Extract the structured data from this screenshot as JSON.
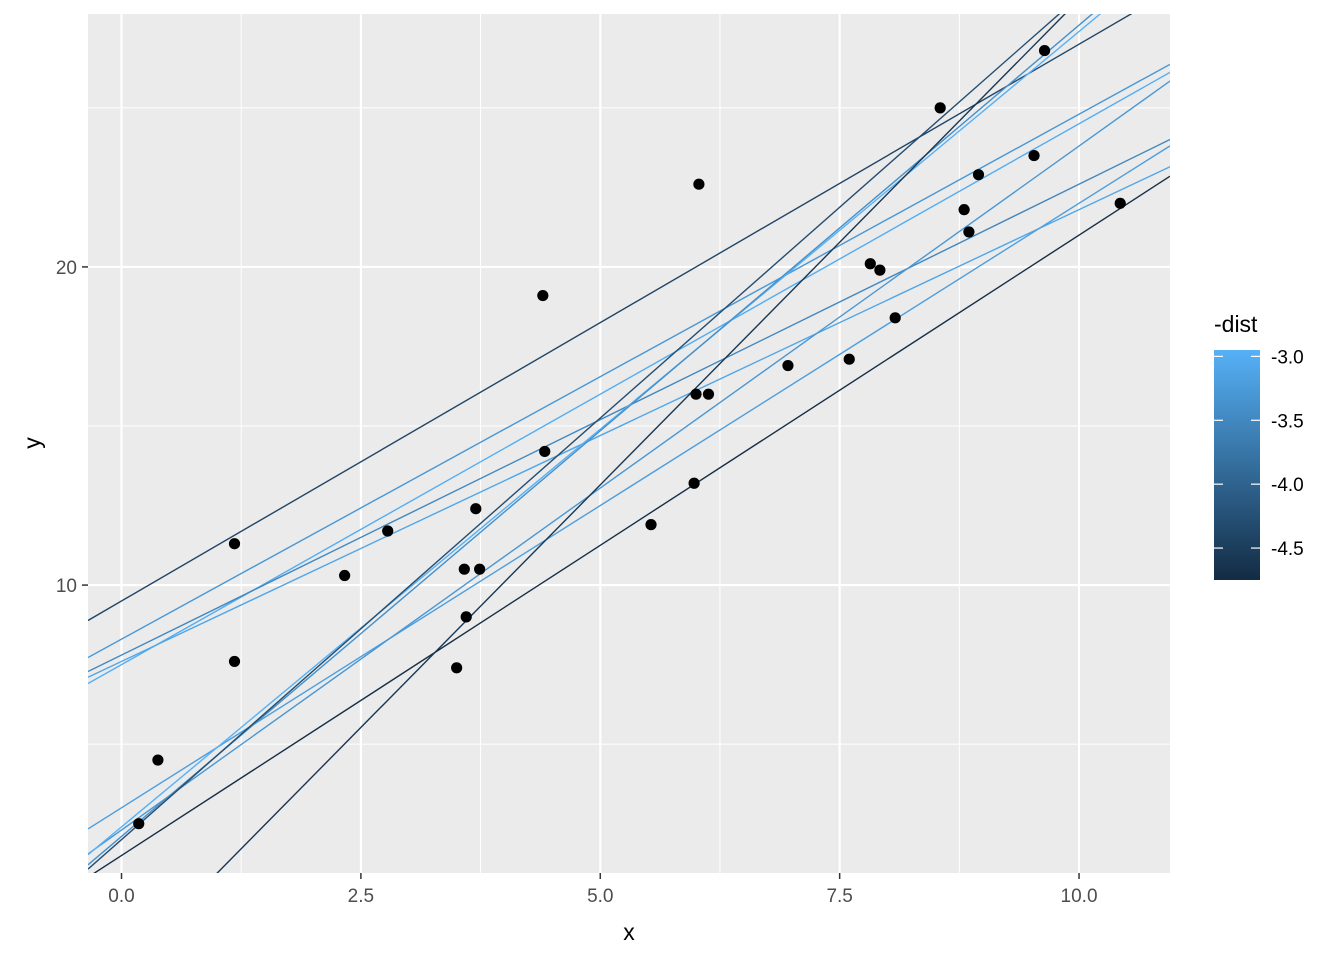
{
  "chart_data": {
    "type": "scatter",
    "title": "",
    "xlabel": "x",
    "ylabel": "y",
    "xlim": [
      -0.35,
      10.95
    ],
    "ylim": [
      0.95,
      27.95
    ],
    "x_ticks": [
      0.0,
      2.5,
      5.0,
      7.5,
      10.0
    ],
    "x_tick_labels": [
      "0.0",
      "2.5",
      "5.0",
      "7.5",
      "10.0"
    ],
    "y_ticks": [
      10,
      20
    ],
    "y_tick_labels": [
      "10",
      "20"
    ],
    "grid": true,
    "points": {
      "x": [
        0.18,
        0.38,
        1.18,
        1.18,
        2.33,
        2.78,
        3.5,
        3.58,
        3.6,
        3.7,
        3.74,
        4.4,
        4.42,
        5.53,
        5.98,
        6.0,
        6.03,
        6.13,
        6.96,
        7.6,
        7.82,
        7.92,
        8.08,
        8.55,
        8.8,
        8.85,
        8.95,
        9.53,
        9.64,
        10.43
      ],
      "y": [
        2.5,
        4.5,
        11.3,
        7.6,
        10.3,
        11.7,
        7.4,
        10.5,
        9.0,
        12.4,
        10.5,
        19.1,
        14.2,
        11.9,
        13.2,
        16.0,
        22.6,
        16.0,
        16.9,
        17.1,
        20.1,
        19.9,
        18.4,
        25.0,
        21.8,
        21.1,
        22.9,
        23.5,
        26.8,
        22.0
      ]
    },
    "series": [
      {
        "intercept": 9.5,
        "slope": 1.75,
        "value": -4.4
      },
      {
        "intercept": 8.3,
        "slope": 1.65,
        "value": -3.3
      },
      {
        "intercept": 7.5,
        "slope": 1.7,
        "value": -3.0
      },
      {
        "intercept": 7.8,
        "slope": 1.48,
        "value": -3.5
      },
      {
        "intercept": 7.6,
        "slope": 1.42,
        "value": -3.1
      },
      {
        "intercept": 3.0,
        "slope": 1.9,
        "value": -3.2
      },
      {
        "intercept": 2.3,
        "slope": 2.15,
        "value": -3.3
      },
      {
        "intercept": 2.4,
        "slope": 2.5,
        "value": -2.9
      },
      {
        "intercept": 2.1,
        "slope": 2.55,
        "value": -3.4
      },
      {
        "intercept": 2.0,
        "slope": 2.65,
        "value": -4.3
      },
      {
        "intercept": 1.5,
        "slope": 1.95,
        "value": -4.7
      },
      {
        "intercept": -2.1,
        "slope": 3.05,
        "value": -4.6
      }
    ],
    "legend": {
      "title": "-dist",
      "position": "right",
      "range": [
        -4.75,
        -2.95
      ],
      "ticks": [
        -3.0,
        -3.5,
        -4.0,
        -4.5
      ],
      "tick_labels": [
        "-3.0",
        "-3.5",
        "-4.0",
        "-4.5"
      ],
      "low_color": "#132b43",
      "high_color": "#56b1f7"
    },
    "colors": {
      "panel_background": "#ebebeb",
      "grid_major": "#ffffff",
      "point": "#000000"
    }
  }
}
